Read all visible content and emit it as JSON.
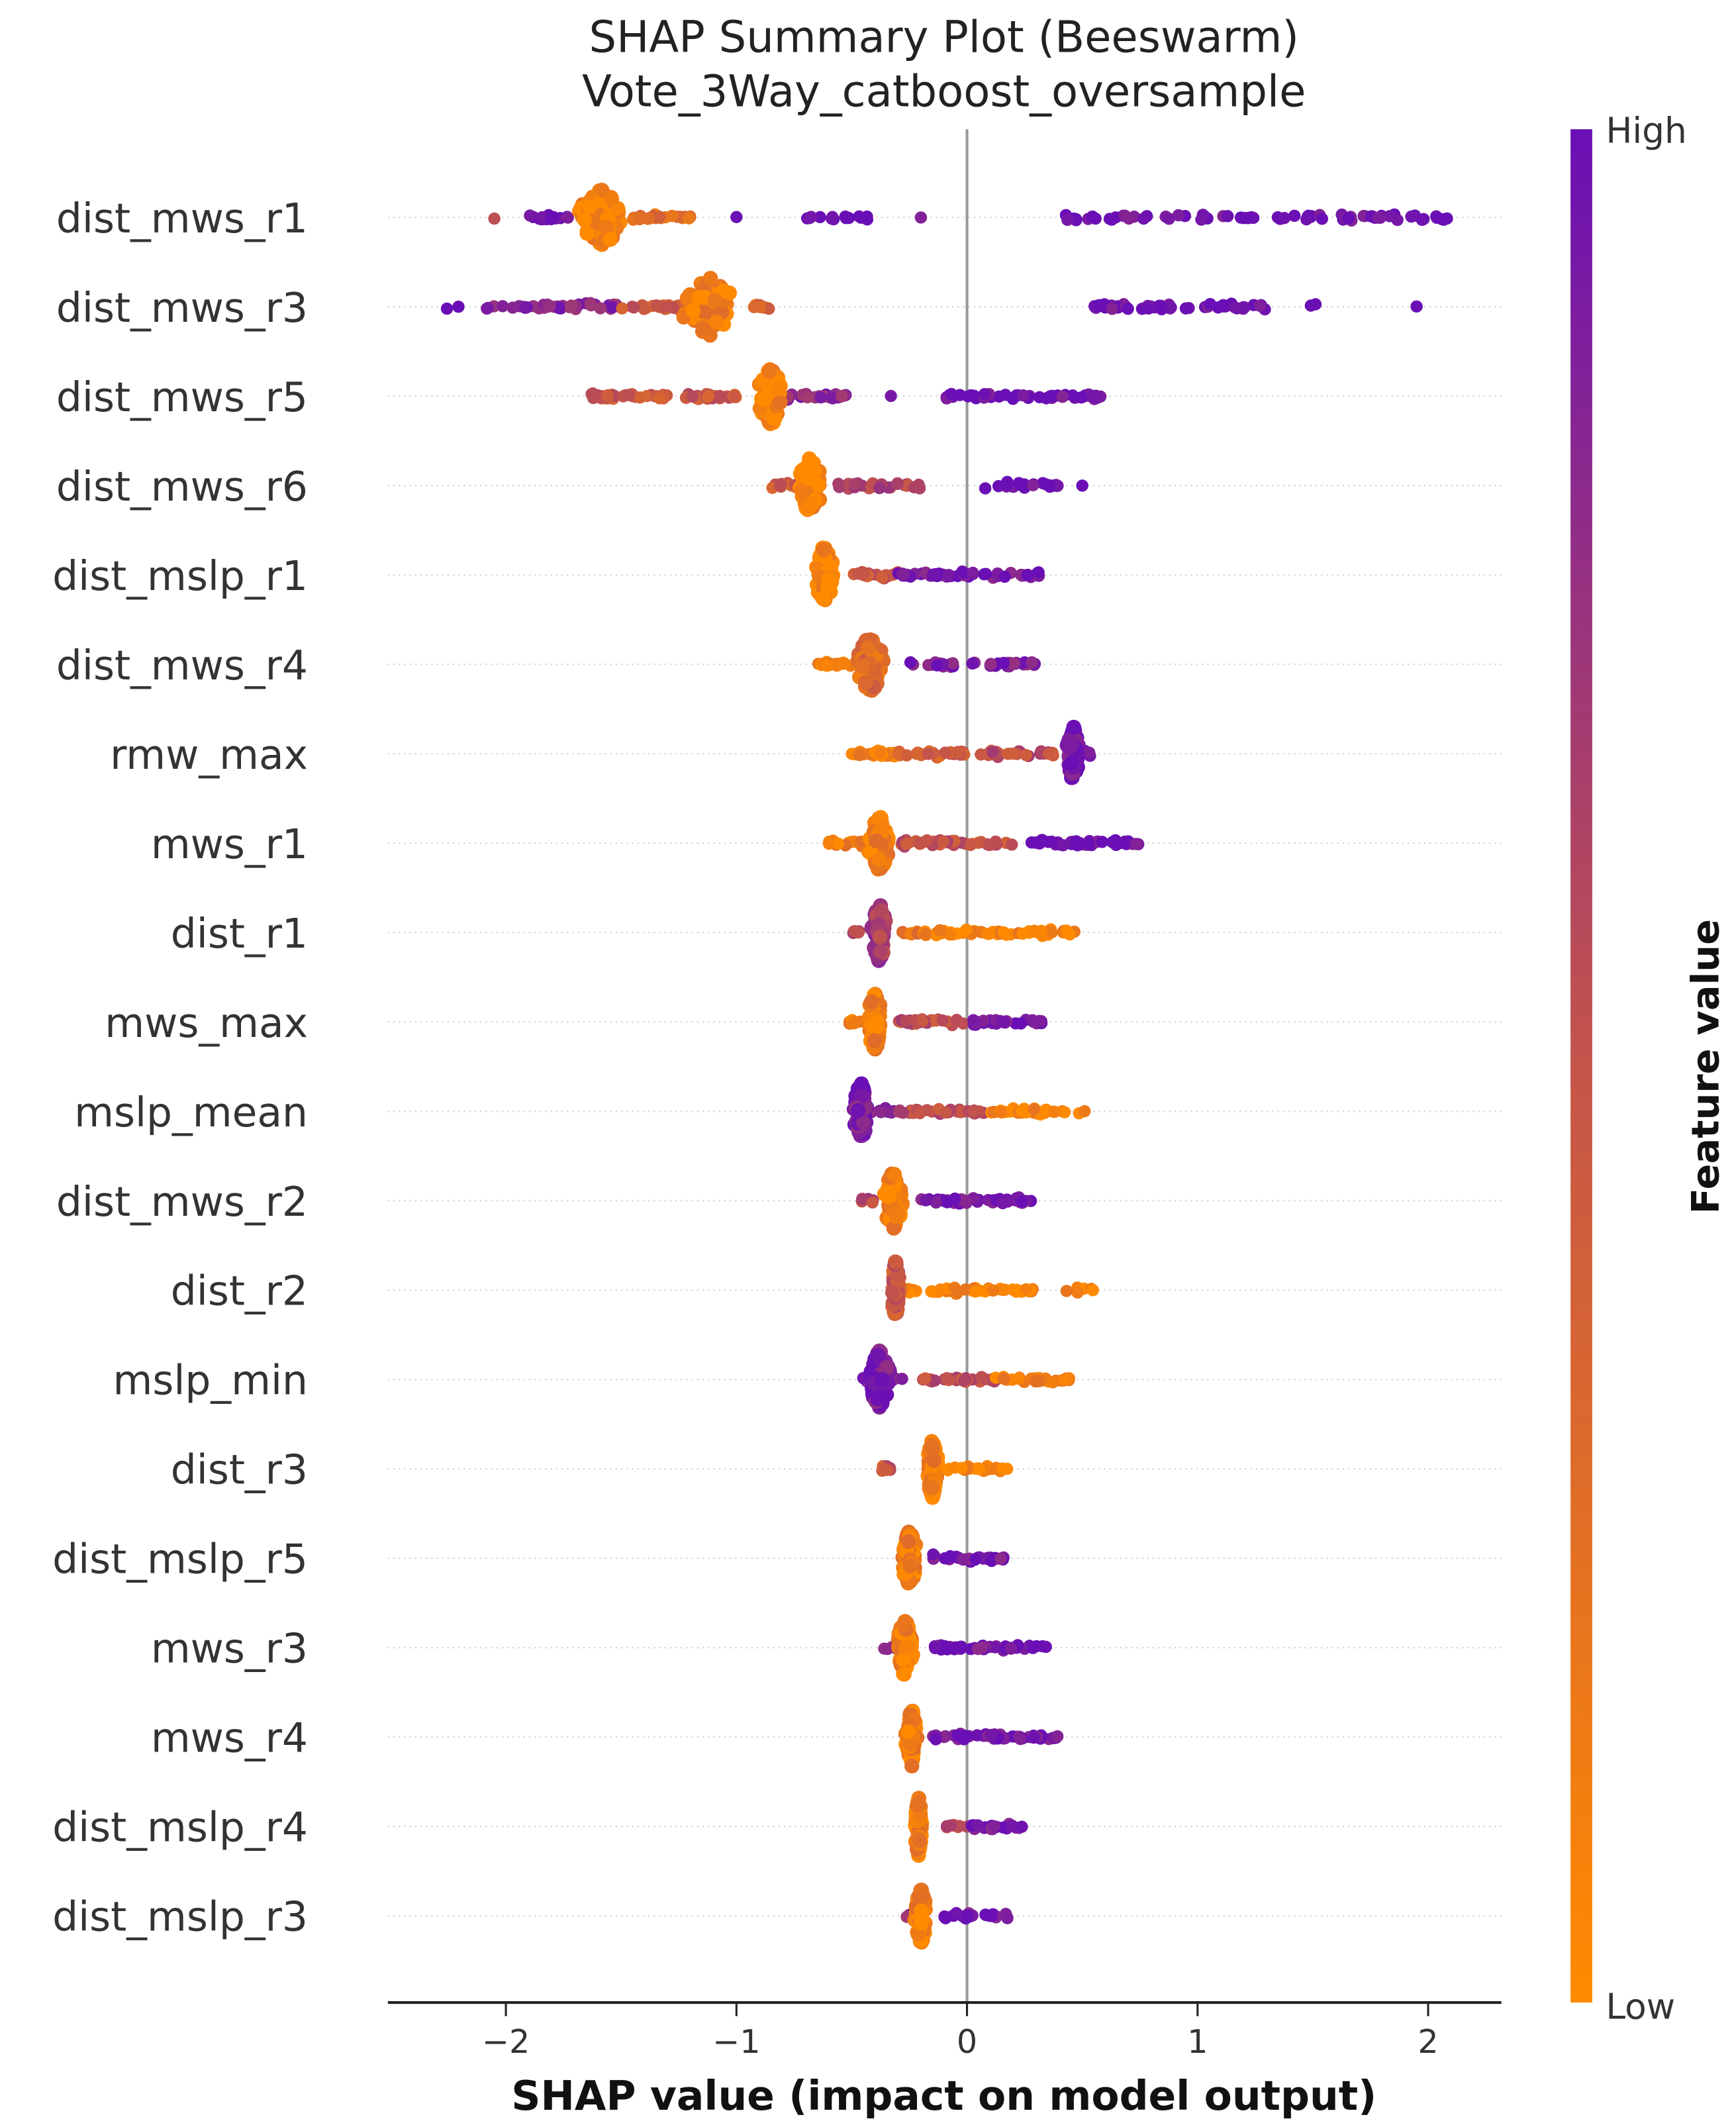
{
  "chart_data": {
    "type": "scatter",
    "subtype": "beeswarm",
    "title": "SHAP Summary Plot (Beeswarm)",
    "subtitle": "Vote_3Way_catboost_oversample",
    "xlabel": "SHAP value (impact on model output)",
    "xlim": [
      -2.5,
      2.3
    ],
    "xticks": [
      -2,
      -1,
      0,
      1,
      2
    ],
    "xtick_labels": [
      "−2",
      "−1",
      "0",
      "1",
      "2"
    ],
    "grid": false,
    "colorbar": {
      "label": "Feature value",
      "high_label": "High",
      "low_label": "Low",
      "high_color": "#6a0fb5",
      "mid_color": "#c4544a",
      "low_color": "#ff8a00"
    },
    "note": "segments: [from, to, feature_value 0=low..1=high, count]; blob: [center, spread, feature_value]",
    "features": [
      {
        "name": "dist_mws_r1",
        "blob": [
          -1.58,
          0.12,
          0.05
        ],
        "segments": [
          [
            -2.05,
            -2.05,
            0.5,
            1
          ],
          [
            -1.9,
            -1.7,
            1,
            14
          ],
          [
            -1.45,
            -1.2,
            0.25,
            25
          ],
          [
            -1.0,
            -1.0,
            1,
            1
          ],
          [
            -0.7,
            -0.42,
            1,
            14
          ],
          [
            -0.2,
            -0.2,
            1,
            1
          ],
          [
            0.42,
            2.1,
            1,
            70
          ]
        ]
      },
      {
        "name": "dist_mws_r3",
        "blob": [
          -1.12,
          0.13,
          0.1
        ],
        "segments": [
          [
            -2.3,
            -2.2,
            1,
            2
          ],
          [
            -2.1,
            -1.5,
            0.85,
            40
          ],
          [
            -1.5,
            -1.25,
            0.45,
            25
          ],
          [
            -0.95,
            -0.85,
            0.3,
            10
          ],
          [
            0.55,
            1.3,
            1,
            50
          ],
          [
            1.48,
            1.52,
            1,
            2
          ],
          [
            1.95,
            1.95,
            1,
            1
          ]
        ]
      },
      {
        "name": "dist_mws_r5",
        "blob": [
          -0.85,
          0.07,
          0.05
        ],
        "segments": [
          [
            -1.63,
            -1.0,
            0.45,
            60
          ],
          [
            -0.8,
            -0.52,
            0.8,
            25
          ],
          [
            -0.33,
            -0.33,
            1,
            1
          ],
          [
            -0.1,
            0.6,
            1,
            50
          ]
        ]
      },
      {
        "name": "dist_mws_r6",
        "blob": [
          -0.68,
          0.06,
          0.05
        ],
        "segments": [
          [
            -0.85,
            -0.72,
            0.45,
            12
          ],
          [
            -0.58,
            -0.2,
            0.6,
            30
          ],
          [
            0.07,
            0.4,
            1,
            25
          ],
          [
            0.5,
            0.5,
            1,
            1
          ]
        ]
      },
      {
        "name": "dist_mslp_r1",
        "blob": [
          -0.62,
          0.05,
          0.05
        ],
        "segments": [
          [
            -0.5,
            -0.3,
            0.45,
            20
          ],
          [
            -0.3,
            0.32,
            0.95,
            50
          ]
        ]
      },
      {
        "name": "dist_mws_r4",
        "blob": [
          -0.42,
          0.07,
          0.3
        ],
        "segments": [
          [
            -0.65,
            -0.5,
            0.05,
            25
          ],
          [
            -0.25,
            0.3,
            0.9,
            40
          ]
        ]
      },
      {
        "name": "rmw_max",
        "blob": [
          0.46,
          0.03,
          0.95
        ],
        "segments": [
          [
            -0.5,
            -0.3,
            0.1,
            30
          ],
          [
            -0.3,
            0.0,
            0.4,
            25
          ],
          [
            0.05,
            0.4,
            0.55,
            30
          ],
          [
            0.5,
            0.55,
            1,
            4
          ]
        ]
      },
      {
        "name": "mws_r1",
        "blob": [
          -0.38,
          0.05,
          0.1
        ],
        "segments": [
          [
            -0.6,
            -0.4,
            0.15,
            20
          ],
          [
            -0.3,
            0.2,
            0.5,
            40
          ],
          [
            0.25,
            0.75,
            1,
            40
          ]
        ]
      },
      {
        "name": "dist_r1",
        "blob": [
          -0.38,
          0.04,
          0.7
        ],
        "segments": [
          [
            -0.5,
            -0.45,
            0.6,
            5
          ],
          [
            -0.28,
            -0.2,
            0.2,
            12
          ],
          [
            -0.2,
            0.2,
            0.05,
            35
          ],
          [
            0.22,
            0.48,
            0.05,
            25
          ]
        ]
      },
      {
        "name": "mws_max",
        "blob": [
          -0.4,
          0.04,
          0.1
        ],
        "segments": [
          [
            -0.52,
            -0.42,
            0.15,
            12
          ],
          [
            -0.3,
            0.0,
            0.55,
            30
          ],
          [
            0.0,
            0.33,
            0.95,
            30
          ]
        ]
      },
      {
        "name": "mslp_mean",
        "blob": [
          -0.46,
          0.04,
          0.95
        ],
        "segments": [
          [
            -0.5,
            -0.3,
            0.85,
            15
          ],
          [
            -0.3,
            0.08,
            0.55,
            35
          ],
          [
            0.1,
            0.52,
            0.05,
            35
          ]
        ]
      },
      {
        "name": "dist_mws_r2",
        "blob": [
          -0.32,
          0.05,
          0.1
        ],
        "segments": [
          [
            -0.47,
            -0.4,
            0.6,
            5
          ],
          [
            -0.2,
            0.28,
            0.95,
            40
          ]
        ]
      },
      {
        "name": "dist_r2",
        "blob": [
          -0.31,
          0.02,
          0.5
        ],
        "segments": [
          [
            -0.28,
            0.3,
            0.05,
            55
          ],
          [
            0.42,
            0.57,
            0.05,
            6
          ]
        ]
      },
      {
        "name": "mslp_min",
        "blob": [
          -0.38,
          0.05,
          0.95
        ],
        "segments": [
          [
            -0.45,
            -0.25,
            0.9,
            15
          ],
          [
            -0.2,
            0.12,
            0.55,
            30
          ],
          [
            0.12,
            0.45,
            0.1,
            30
          ]
        ]
      },
      {
        "name": "dist_r3",
        "blob": [
          -0.15,
          0.03,
          0.1
        ],
        "segments": [
          [
            -0.37,
            -0.33,
            0.5,
            10
          ],
          [
            -0.1,
            0.18,
            0.05,
            25
          ]
        ]
      },
      {
        "name": "dist_mslp_r5",
        "blob": [
          -0.25,
          0.04,
          0.1
        ],
        "segments": [
          [
            -0.15,
            0.18,
            0.95,
            30
          ]
        ]
      },
      {
        "name": "mws_r3",
        "blob": [
          -0.27,
          0.04,
          0.1
        ],
        "segments": [
          [
            -0.36,
            -0.3,
            0.8,
            4
          ],
          [
            -0.15,
            0.35,
            0.95,
            40
          ]
        ]
      },
      {
        "name": "mws_r4",
        "blob": [
          -0.24,
          0.03,
          0.1
        ],
        "segments": [
          [
            -0.15,
            0.4,
            0.95,
            45
          ]
        ]
      },
      {
        "name": "dist_mslp_r4",
        "blob": [
          -0.21,
          0.02,
          0.1
        ],
        "segments": [
          [
            -0.1,
            0.0,
            0.6,
            8
          ],
          [
            0.0,
            0.24,
            0.95,
            20
          ]
        ]
      },
      {
        "name": "dist_mslp_r3",
        "blob": [
          -0.2,
          0.03,
          0.1
        ],
        "segments": [
          [
            -0.27,
            -0.22,
            0.8,
            3
          ],
          [
            -0.1,
            0.18,
            0.95,
            25
          ]
        ]
      }
    ]
  }
}
